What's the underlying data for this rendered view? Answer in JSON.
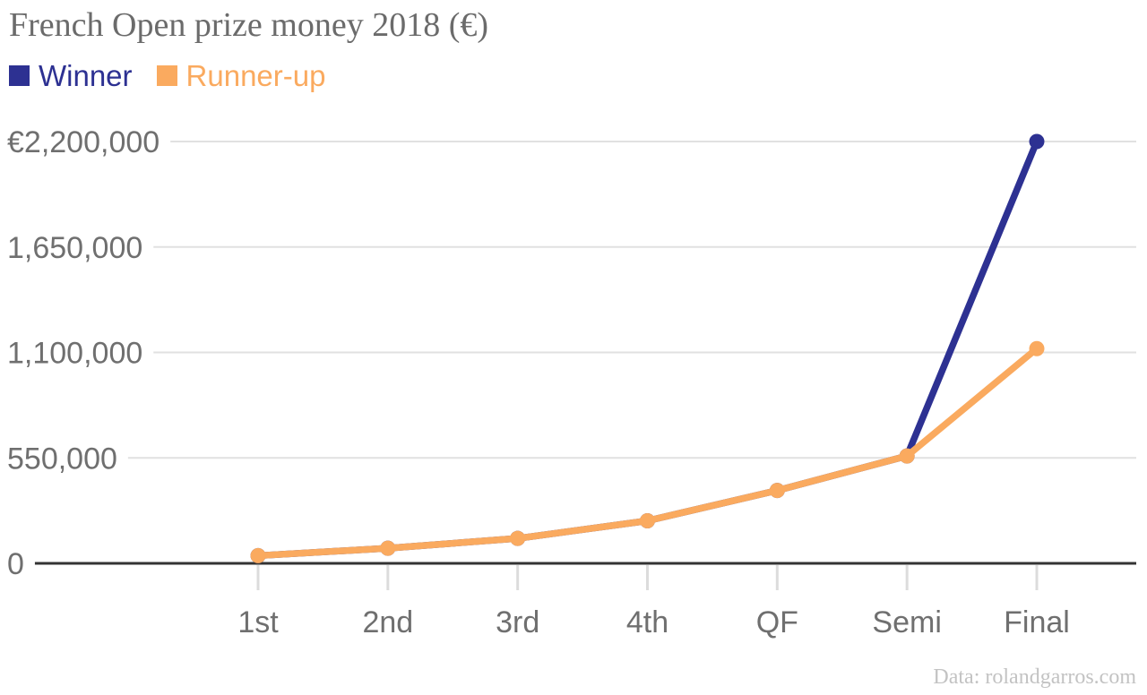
{
  "title": "French Open prize money 2018 (€)",
  "legend": [
    {
      "label": "Winner",
      "color": "#2d3192"
    },
    {
      "label": "Runner-up",
      "color": "#faaa5f"
    }
  ],
  "footer": "Data: rolandgarros.com",
  "chart_data": {
    "type": "line",
    "title": "French Open prize money 2018 (€)",
    "categories": [
      "1st",
      "2nd",
      "3rd",
      "4th",
      "QF",
      "Semi",
      "Final"
    ],
    "series": [
      {
        "name": "Winner",
        "color": "#2d3192",
        "values": [
          40000,
          79000,
          130000,
          222000,
          380000,
          560000,
          2200000
        ]
      },
      {
        "name": "Runner-up",
        "color": "#faaa5f",
        "values": [
          40000,
          79000,
          130000,
          222000,
          380000,
          560000,
          1120000
        ]
      }
    ],
    "y_ticks": [
      {
        "value": 0,
        "label": "0"
      },
      {
        "value": 550000,
        "label": "550,000"
      },
      {
        "value": 1100000,
        "label": "1,100,000"
      },
      {
        "value": 1650000,
        "label": "1,650,000"
      },
      {
        "value": 2200000,
        "label": "€2,200,000"
      }
    ],
    "ylim": [
      0,
      2200000
    ],
    "grid": true,
    "legend_position": "top",
    "marker": "circle",
    "source": "Data: rolandgarros.com",
    "colors": {
      "title_text": "#6b6b6b",
      "axis_labels": "#6f6f6f",
      "gridline": "#e1e1e1",
      "zero_axis": "#333333",
      "tick_mark": "#dcdcdc",
      "source_text": "#c3c3c3",
      "background": "#ffffff"
    }
  }
}
